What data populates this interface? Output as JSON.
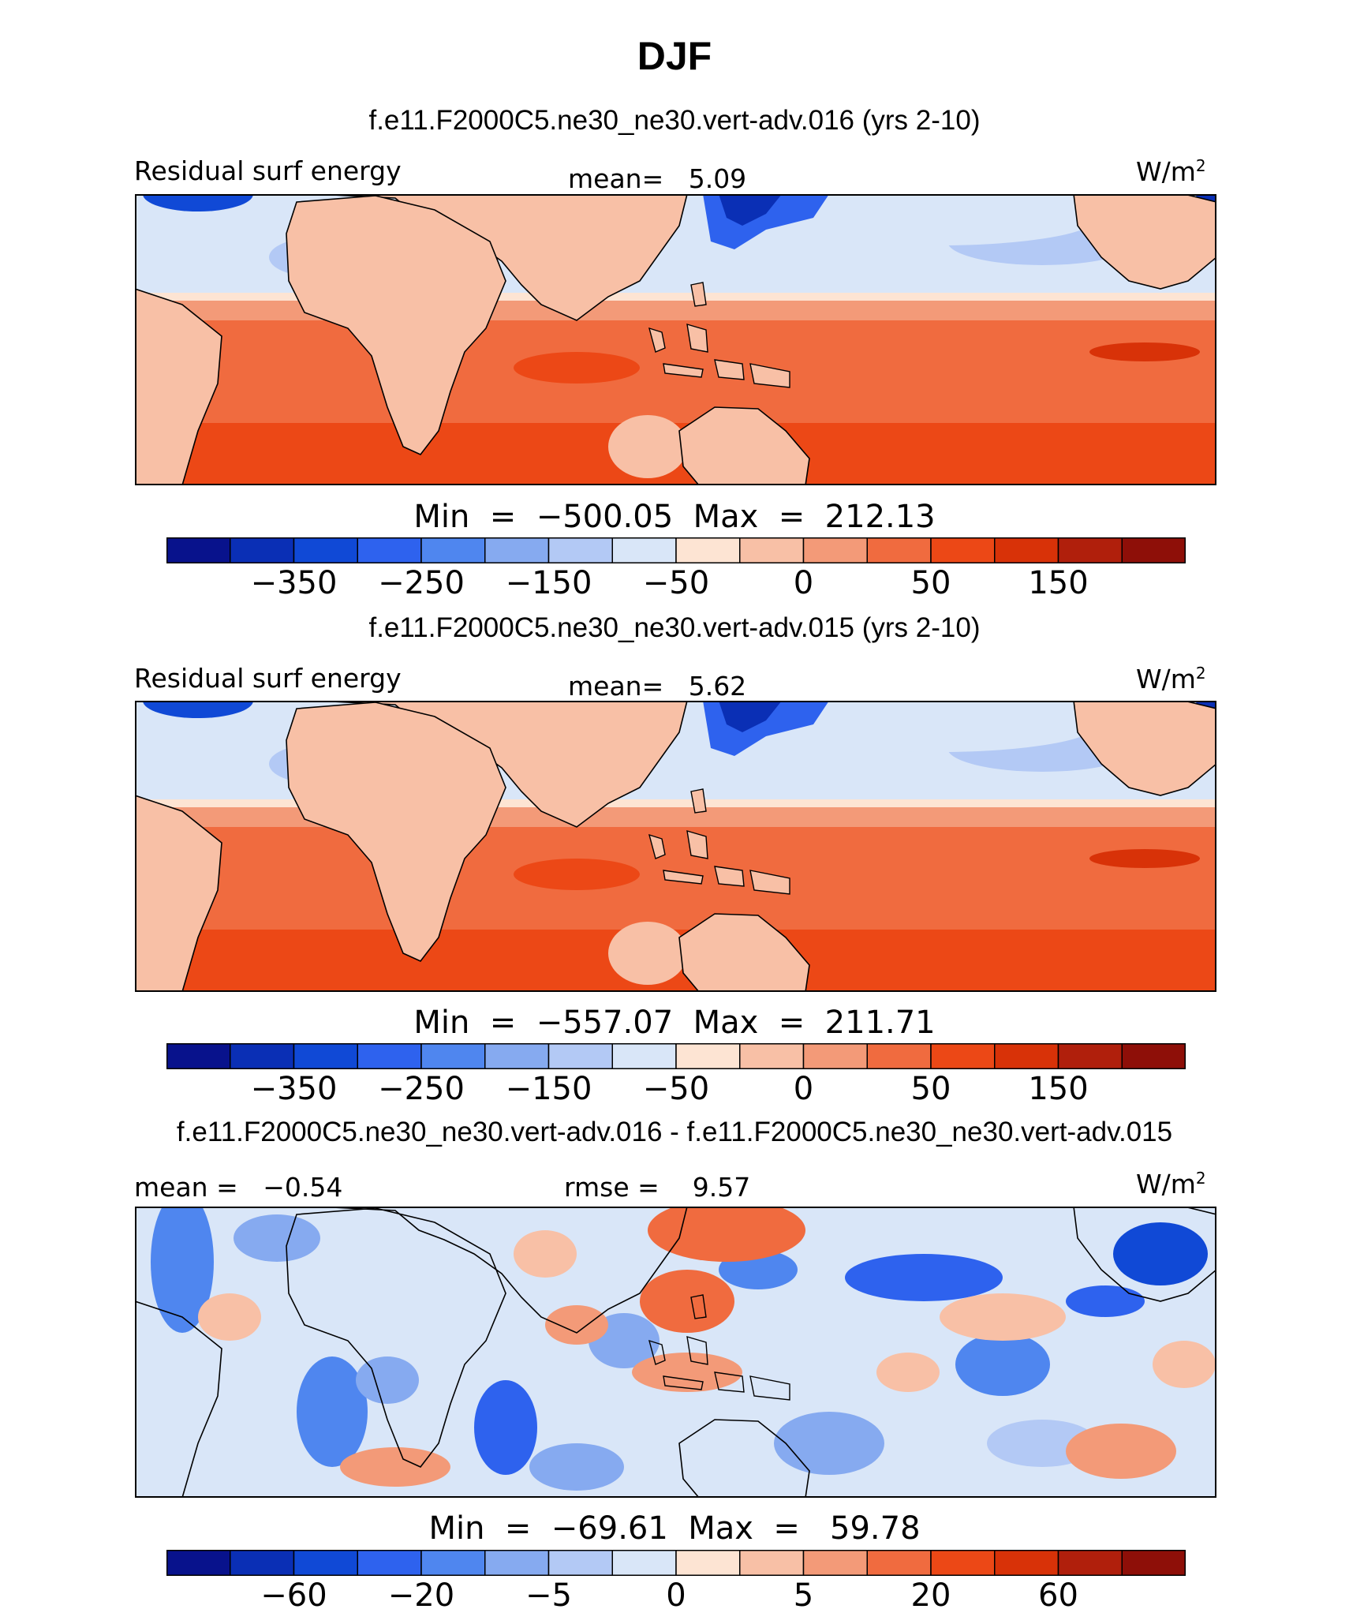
{
  "figure": {
    "title": "DJF"
  },
  "palette": [
    "#08128c",
    "#0a2fb5",
    "#1049d6",
    "#2e62ee",
    "#4f86ef",
    "#86aaf0",
    "#b3c9f5",
    "#d9e6f8",
    "#fde4d3",
    "#f8c0a6",
    "#f39a78",
    "#f06b3f",
    "#ec4816",
    "#d83208",
    "#b01f0c",
    "#8e0f08"
  ],
  "land_color": "#f8c0a6",
  "panels": [
    {
      "title": "f.e11.F2000C5.ne30_ne30.vert-adv.016 (yrs 2-10)",
      "left_label": "Residual surf energy",
      "center_label": "mean=   5.09",
      "units": "W/m",
      "units_sup": "2",
      "minmax": "Min  =  −500.05  Max  =  212.13",
      "colorbar_ticks": [
        {
          "text": "−350",
          "boundary": 2
        },
        {
          "text": "−250",
          "boundary": 4
        },
        {
          "text": "−150",
          "boundary": 6
        },
        {
          "text": "−50",
          "boundary": 8
        },
        {
          "text": "0",
          "boundary": 10
        },
        {
          "text": "50",
          "boundary": 12
        },
        {
          "text": "150",
          "boundary": 14
        }
      ]
    },
    {
      "title": "f.e11.F2000C5.ne30_ne30.vert-adv.015 (yrs 2-10)",
      "left_label": "Residual surf energy",
      "center_label": "mean=   5.62",
      "units": "W/m",
      "units_sup": "2",
      "minmax": "Min  =  −557.07  Max  =  211.71",
      "colorbar_ticks": [
        {
          "text": "−350",
          "boundary": 2
        },
        {
          "text": "−250",
          "boundary": 4
        },
        {
          "text": "−150",
          "boundary": 6
        },
        {
          "text": "−50",
          "boundary": 8
        },
        {
          "text": "0",
          "boundary": 10
        },
        {
          "text": "50",
          "boundary": 12
        },
        {
          "text": "150",
          "boundary": 14
        }
      ]
    },
    {
      "title": "f.e11.F2000C5.ne30_ne30.vert-adv.016 - f.e11.F2000C5.ne30_ne30.vert-adv.015",
      "left_label": "mean =   −0.54",
      "center_label": "rmse =    9.57",
      "units": "W/m",
      "units_sup": "2",
      "minmax": "Min  =  −69.61  Max  =   59.78",
      "colorbar_ticks": [
        {
          "text": "−60",
          "boundary": 2
        },
        {
          "text": "−20",
          "boundary": 4
        },
        {
          "text": "−5",
          "boundary": 6
        },
        {
          "text": "0",
          "boundary": 8
        },
        {
          "text": "5",
          "boundary": 10
        },
        {
          "text": "20",
          "boundary": 12
        },
        {
          "text": "60",
          "boundary": 14
        }
      ]
    }
  ]
}
